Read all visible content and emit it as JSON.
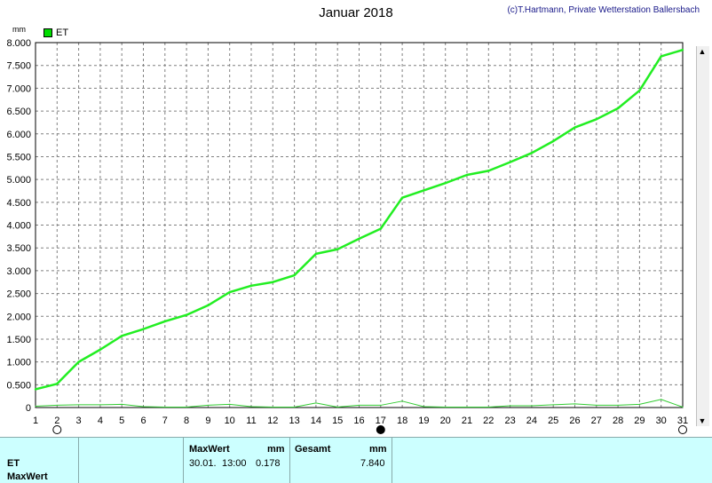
{
  "header": {
    "title": "Januar 2018",
    "copyright": "(c)T.Hartmann, Private Wetterstation Ballersbach"
  },
  "chart_data": {
    "type": "line",
    "title": "Januar 2018",
    "ylabel": "mm",
    "xlim": [
      1,
      31
    ],
    "ylim": [
      0,
      8.0
    ],
    "x": [
      1,
      2,
      3,
      4,
      5,
      6,
      7,
      8,
      9,
      10,
      11,
      12,
      13,
      14,
      15,
      16,
      17,
      18,
      19,
      20,
      21,
      22,
      23,
      24,
      25,
      26,
      27,
      28,
      29,
      30,
      31
    ],
    "y_ticks": [
      "0",
      "0.500",
      "1.000",
      "1.500",
      "2.000",
      "2.500",
      "3.000",
      "3.500",
      "4.000",
      "4.500",
      "5.000",
      "5.500",
      "6.000",
      "6.500",
      "7.000",
      "7.500",
      "8.000"
    ],
    "y_tick_values": [
      0,
      0.5,
      1.0,
      1.5,
      2.0,
      2.5,
      3.0,
      3.5,
      4.0,
      4.5,
      5.0,
      5.5,
      6.0,
      6.5,
      7.0,
      7.5,
      8.0
    ],
    "x_ticks": [
      "1",
      "2",
      "3",
      "4",
      "5",
      "6",
      "7",
      "8",
      "9",
      "10",
      "11",
      "12",
      "13",
      "14",
      "15",
      "16",
      "17",
      "18",
      "19",
      "20",
      "21",
      "22",
      "23",
      "24",
      "25",
      "26",
      "27",
      "28",
      "29",
      "30",
      "31"
    ],
    "grid": true,
    "legend": "top-left",
    "series": [
      {
        "name": "ET",
        "color": "#22ee22",
        "values": [
          0.4,
          0.52,
          1.0,
          1.27,
          1.57,
          1.72,
          1.89,
          2.03,
          2.24,
          2.53,
          2.67,
          2.75,
          2.9,
          3.37,
          3.47,
          3.7,
          3.92,
          4.6,
          4.76,
          4.92,
          5.1,
          5.19,
          5.38,
          5.58,
          5.84,
          6.14,
          6.32,
          6.56,
          6.95,
          7.7,
          7.84
        ]
      },
      {
        "color": "#33cc33",
        "values": [
          0.03,
          0.05,
          0.06,
          0.06,
          0.07,
          0.02,
          0.01,
          0.01,
          0.05,
          0.07,
          0.02,
          0.01,
          0.01,
          0.1,
          0.01,
          0.05,
          0.05,
          0.14,
          0.02,
          0.01,
          0.01,
          0.01,
          0.04,
          0.04,
          0.06,
          0.08,
          0.05,
          0.05,
          0.07,
          0.178,
          0.01
        ]
      }
    ],
    "moon_phases": [
      {
        "day": 2,
        "phase": "full"
      },
      {
        "day": 17,
        "phase": "new"
      },
      {
        "day": 31,
        "phase": "full"
      }
    ]
  },
  "table": {
    "row_label": "ET",
    "row_label_2": "MaxWert",
    "max_header": "MaxWert",
    "max_unit": "mm",
    "max_date": "30.01.",
    "max_time": "13:00",
    "max_value": "0.178",
    "sum_header": "Gesamt",
    "sum_unit": "mm",
    "sum_value": "7.840"
  },
  "colors": {
    "line": "#22ee22",
    "grid": "#808080",
    "table_bg": "#ccffff"
  }
}
